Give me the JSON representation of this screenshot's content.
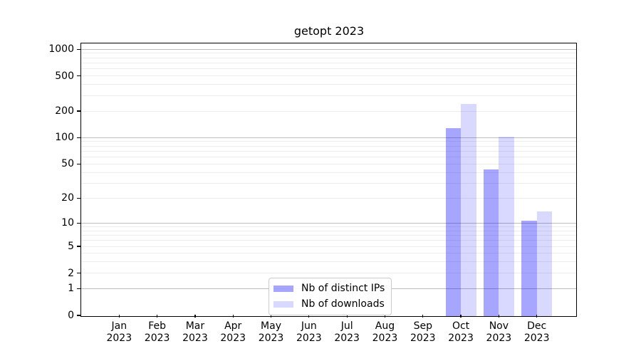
{
  "chart_data": {
    "type": "bar",
    "title": "getopt 2023",
    "categories": [
      "Jan 2023",
      "Feb 2023",
      "Mar 2023",
      "Apr 2023",
      "May 2023",
      "Jun 2023",
      "Jul 2023",
      "Aug 2023",
      "Sep 2023",
      "Oct 2023",
      "Nov 2023",
      "Dec 2023"
    ],
    "series": [
      {
        "name": "Nb of distinct IPs",
        "color": "#0000ff59",
        "solid_color": "#a6a6ff",
        "values": [
          0,
          0,
          0,
          0,
          0,
          0,
          0,
          0,
          0,
          130,
          44,
          11
        ]
      },
      {
        "name": "Nb of downloads",
        "color": "#0000ff26",
        "solid_color": "#d9d9ff",
        "values": [
          0,
          0,
          0,
          0,
          0,
          0,
          0,
          0,
          0,
          245,
          105,
          14
        ]
      }
    ],
    "yscale": "log1p",
    "yticks": [
      0,
      1,
      2,
      5,
      10,
      20,
      50,
      100,
      200,
      500,
      1000
    ],
    "ylim": [
      0,
      1200
    ],
    "grid": {
      "axis": "y",
      "major_color": "#bdbdbd",
      "minor_color": "#ededed"
    },
    "legend_position": "lower center",
    "spine_color": "#000000",
    "background": "#ffffff"
  }
}
